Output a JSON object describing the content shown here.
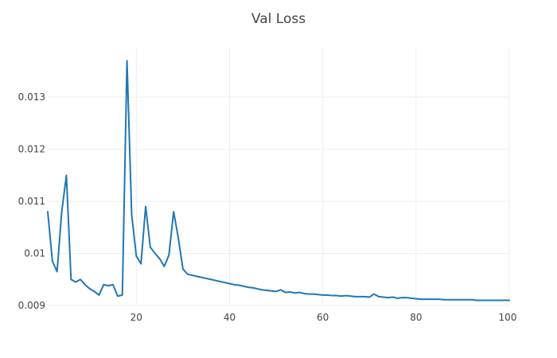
{
  "chart_data": {
    "type": "line",
    "title": "Val Loss",
    "xlabel": "",
    "ylabel": "",
    "xlim": [
      1,
      100
    ],
    "ylim": [
      0.009,
      0.01395
    ],
    "x_ticks": [
      20,
      40,
      60,
      80,
      100
    ],
    "x_tick_labels": [
      "20",
      "40",
      "60",
      "80",
      "100"
    ],
    "y_ticks": [
      0.009,
      0.01,
      0.011,
      0.012,
      0.013
    ],
    "y_tick_labels": [
      "0.009",
      "0.01",
      "0.011",
      "0.012",
      "0.013"
    ],
    "grid": true,
    "legend": "none",
    "color": "#1f77b4",
    "series": [
      {
        "x": [
          1,
          2,
          3,
          4,
          5,
          6,
          7,
          8,
          9,
          10,
          11,
          12,
          13,
          14,
          15,
          16,
          17,
          18,
          19,
          20,
          21,
          22,
          23,
          24,
          25,
          26,
          27,
          28,
          29,
          30,
          31,
          32,
          33,
          34,
          35,
          36,
          37,
          38,
          39,
          40,
          41,
          42,
          43,
          44,
          45,
          46,
          47,
          48,
          49,
          50,
          51,
          52,
          53,
          54,
          55,
          56,
          57,
          58,
          59,
          60,
          61,
          62,
          63,
          64,
          65,
          66,
          67,
          68,
          69,
          70,
          71,
          72,
          73,
          74,
          75,
          76,
          77,
          78,
          79,
          80,
          81,
          82,
          83,
          84,
          85,
          86,
          87,
          88,
          89,
          90,
          91,
          92,
          93,
          94,
          95,
          96,
          97,
          98,
          99,
          100
        ],
        "values": [
          0.0108,
          0.00985,
          0.00965,
          0.0108,
          0.0115,
          0.0095,
          0.00945,
          0.0095,
          0.0094,
          0.00932,
          0.00927,
          0.0092,
          0.0094,
          0.00938,
          0.0094,
          0.00918,
          0.0092,
          0.0137,
          0.01075,
          0.00995,
          0.0098,
          0.0109,
          0.01012,
          0.01,
          0.0099,
          0.00975,
          0.00997,
          0.0108,
          0.0103,
          0.0097,
          0.0096,
          0.00958,
          0.00956,
          0.00954,
          0.00952,
          0.0095,
          0.00948,
          0.00946,
          0.00944,
          0.00942,
          0.0094,
          0.00939,
          0.00937,
          0.00935,
          0.00934,
          0.00932,
          0.0093,
          0.00929,
          0.00928,
          0.00927,
          0.0093,
          0.00925,
          0.00926,
          0.00924,
          0.00925,
          0.00923,
          0.00922,
          0.00922,
          0.00921,
          0.0092,
          0.0092,
          0.00919,
          0.00919,
          0.00918,
          0.00919,
          0.00918,
          0.00917,
          0.00917,
          0.00917,
          0.00916,
          0.00922,
          0.00917,
          0.00916,
          0.00915,
          0.00916,
          0.00914,
          0.00915,
          0.00915,
          0.00914,
          0.00913,
          0.00912,
          0.00912,
          0.00912,
          0.00912,
          0.00912,
          0.00911,
          0.00911,
          0.00911,
          0.00911,
          0.00911,
          0.00911,
          0.00911,
          0.0091,
          0.0091,
          0.0091,
          0.0091,
          0.0091,
          0.0091,
          0.0091,
          0.0091
        ]
      }
    ]
  }
}
